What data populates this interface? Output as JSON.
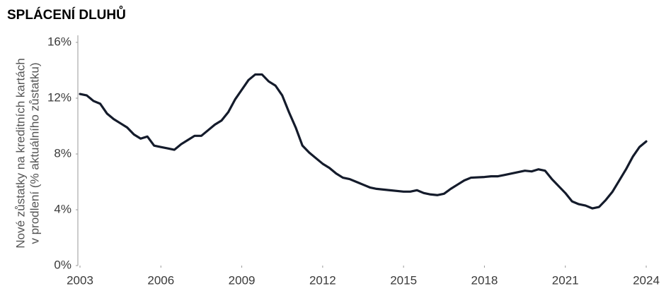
{
  "chart_data": {
    "type": "line",
    "title": "SPLÁCENÍ DLUHŮ",
    "y_label": [
      "Nové zůstatky na kreditních kartách",
      "v prodlení (% aktuálního zůstatku)"
    ],
    "x": [
      2003,
      2003.25,
      2003.5,
      2003.75,
      2004,
      2004.25,
      2004.5,
      2004.75,
      2005,
      2005.25,
      2005.5,
      2005.75,
      2006,
      2006.25,
      2006.5,
      2006.75,
      2007,
      2007.25,
      2007.5,
      2007.75,
      2008,
      2008.25,
      2008.5,
      2008.75,
      2009,
      2009.25,
      2009.5,
      2009.75,
      2010,
      2010.25,
      2010.5,
      2010.75,
      2011,
      2011.25,
      2011.5,
      2011.75,
      2012,
      2012.25,
      2012.5,
      2012.75,
      2013,
      2013.25,
      2013.5,
      2013.75,
      2014,
      2014.5,
      2015,
      2015.25,
      2015.5,
      2015.75,
      2016,
      2016.25,
      2016.5,
      2016.75,
      2017,
      2017.25,
      2017.5,
      2018,
      2018.25,
      2018.5,
      2018.75,
      2019,
      2019.25,
      2019.5,
      2019.75,
      2020,
      2020.25,
      2020.5,
      2020.75,
      2021,
      2021.25,
      2021.5,
      2021.75,
      2022,
      2022.25,
      2022.5,
      2022.75,
      2023,
      2023.25,
      2023.5,
      2023.75,
      2024
    ],
    "series": [
      {
        "name": "Nové zůstatky v prodlení",
        "color": "#141b2b",
        "values": [
          12.3,
          12.2,
          11.8,
          11.6,
          10.9,
          10.5,
          10.2,
          9.9,
          9.4,
          9.1,
          9.25,
          8.6,
          8.5,
          8.4,
          8.3,
          8.7,
          9.0,
          9.3,
          9.3,
          9.7,
          10.1,
          10.4,
          11.0,
          11.9,
          12.6,
          13.3,
          13.7,
          13.7,
          13.2,
          12.9,
          12.2,
          11.0,
          9.9,
          8.6,
          8.1,
          7.7,
          7.3,
          7.0,
          6.6,
          6.3,
          6.2,
          6.0,
          5.8,
          5.6,
          5.5,
          5.4,
          5.3,
          5.3,
          5.4,
          5.2,
          5.1,
          5.05,
          5.15,
          5.5,
          5.8,
          6.1,
          6.3,
          6.35,
          6.4,
          6.4,
          6.5,
          6.6,
          6.7,
          6.8,
          6.75,
          6.9,
          6.8,
          6.2,
          5.7,
          5.2,
          4.6,
          4.4,
          4.3,
          4.1,
          4.2,
          4.7,
          5.3,
          6.1,
          6.9,
          7.8,
          8.5,
          8.9
        ]
      }
    ],
    "xlim": [
      2003,
      2024
    ],
    "xticks": [
      2003,
      2006,
      2009,
      2012,
      2015,
      2018,
      2021,
      2024
    ],
    "ylim": [
      0,
      16
    ],
    "yticks": [
      {
        "value": 0,
        "label": "0%"
      },
      {
        "value": 4,
        "label": "4%"
      },
      {
        "value": 8,
        "label": "8%"
      },
      {
        "value": 12,
        "label": "12%"
      },
      {
        "value": 16,
        "label": "16%"
      }
    ],
    "grid": false
  }
}
